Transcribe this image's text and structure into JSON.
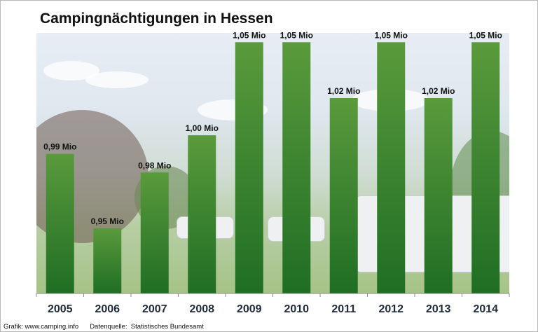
{
  "chart_data": {
    "type": "bar",
    "title": "Campingnächtigungen in Hessen",
    "categories": [
      "2005",
      "2006",
      "2007",
      "2008",
      "2009",
      "2010",
      "2011",
      "2012",
      "2013",
      "2014"
    ],
    "values": [
      0.99,
      0.95,
      0.98,
      1.0,
      1.05,
      1.05,
      1.02,
      1.05,
      1.02,
      1.05
    ],
    "data_labels": [
      "0,99 Mio",
      "0,95 Mio",
      "0,98 Mio",
      "1,00 Mio",
      "1,05 Mio",
      "1,05 Mio",
      "1,02 Mio",
      "1,05 Mio",
      "1,02 Mio",
      "1,05 Mio"
    ],
    "ylim": [
      0.915,
      1.055
    ],
    "xlabel": "",
    "ylabel": "",
    "legend": "none",
    "grid": false,
    "bar_color_top": "#5a9a3c",
    "bar_color_bottom": "#1f6e24"
  },
  "footer": {
    "credit": "Grafik: www.camping.info",
    "source": "Datenquelle:  Statistisches Bundesamt"
  }
}
